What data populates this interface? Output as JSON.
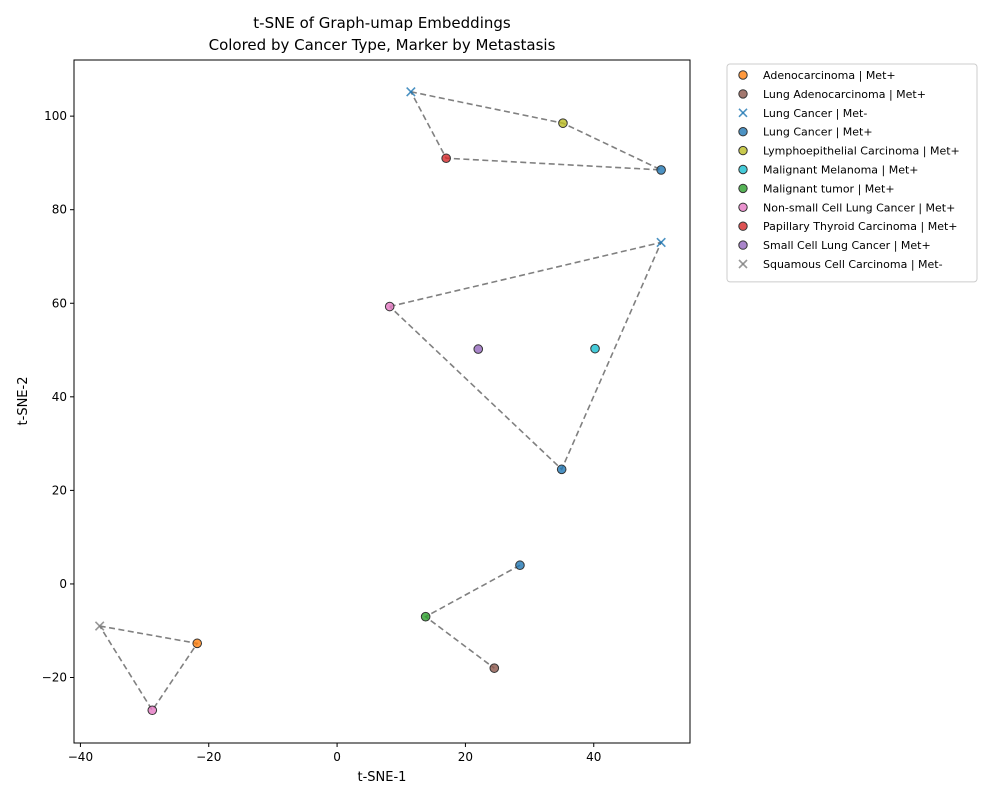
{
  "chart_data": {
    "type": "scatter",
    "title": "t-SNE of Graph-umap Embeddings",
    "subtitle": "Colored by Cancer Type, Marker by Metastasis",
    "xlabel": "t-SNE-1",
    "ylabel": "t-SNE-2",
    "xlim": [
      -41,
      55
    ],
    "ylim": [
      -34,
      112
    ],
    "xticks": [
      -40,
      -20,
      0,
      20,
      40
    ],
    "yticks": [
      -20,
      0,
      20,
      40,
      60,
      80,
      100
    ],
    "grid": false,
    "legend_position": "outside-top-right",
    "series": [
      {
        "name": "Adenocarcinoma | Met+",
        "marker": "circle",
        "color": "#ff7f0e",
        "points": [
          {
            "x": -21.8,
            "y": -12.7
          }
        ]
      },
      {
        "name": "Lung Adenocarcinoma | Met+",
        "marker": "circle",
        "color": "#8c564b",
        "points": [
          {
            "x": 24.5,
            "y": -18
          }
        ]
      },
      {
        "name": "Lung Cancer | Met-",
        "marker": "x",
        "color": "#1f77b4",
        "points": [
          {
            "x": 11.5,
            "y": 105.2
          },
          {
            "x": 50.5,
            "y": 73
          }
        ]
      },
      {
        "name": "Lung Cancer | Met+",
        "marker": "circle",
        "color": "#1f77b4",
        "points": [
          {
            "x": 50.5,
            "y": 88.5
          },
          {
            "x": 35,
            "y": 24.5
          },
          {
            "x": 28.5,
            "y": 4
          }
        ]
      },
      {
        "name": "Lymphoepithelial Carcinoma | Met+",
        "marker": "circle",
        "color": "#bcbd22",
        "points": [
          {
            "x": 35.2,
            "y": 98.5
          }
        ]
      },
      {
        "name": "Malignant Melanoma | Met+",
        "marker": "circle",
        "color": "#17becf",
        "points": [
          {
            "x": 40.2,
            "y": 50.3
          }
        ]
      },
      {
        "name": "Malignant tumor | Met+",
        "marker": "circle",
        "color": "#2ca02c",
        "points": [
          {
            "x": 13.8,
            "y": -7
          }
        ]
      },
      {
        "name": "Non-small Cell Lung Cancer | Met+",
        "marker": "circle",
        "color": "#e377c2",
        "points": [
          {
            "x": 8.2,
            "y": 59.3
          },
          {
            "x": -28.8,
            "y": -27
          }
        ]
      },
      {
        "name": "Papillary Thyroid Carcinoma | Met+",
        "marker": "circle",
        "color": "#d62728",
        "points": [
          {
            "x": 17,
            "y": 91
          }
        ]
      },
      {
        "name": "Small Cell Lung Cancer | Met+",
        "marker": "circle",
        "color": "#9467bd",
        "points": [
          {
            "x": 22,
            "y": 50.2
          }
        ]
      },
      {
        "name": "Squamous Cell Carcinoma | Met-",
        "marker": "x",
        "color": "#7f7f7f",
        "points": [
          {
            "x": -37,
            "y": -9
          }
        ]
      }
    ],
    "connections": [
      [
        [
          11.5,
          105.2
        ],
        [
          35.2,
          98.5
        ],
        [
          50.5,
          88.5
        ],
        [
          17,
          91
        ],
        [
          11.5,
          105.2
        ]
      ],
      [
        [
          8.2,
          59.3
        ],
        [
          50.5,
          73
        ],
        [
          35,
          24.5
        ],
        [
          8.2,
          59.3
        ]
      ],
      [
        [
          28.5,
          4
        ],
        [
          13.8,
          -7
        ],
        [
          24.5,
          -18
        ]
      ],
      [
        [
          -37,
          -9
        ],
        [
          -21.8,
          -12.7
        ],
        [
          -28.8,
          -27
        ],
        [
          -37,
          -9
        ]
      ]
    ],
    "connection_color": "#808080",
    "connection_style": "dashed"
  }
}
